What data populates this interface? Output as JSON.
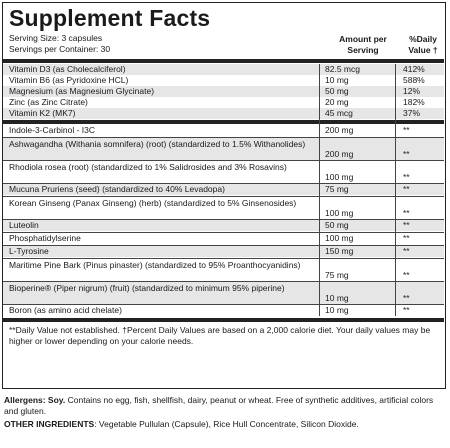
{
  "title": "Supplement Facts",
  "serving_size": "Serving Size: 3 capsules",
  "servings_per_container": "Servings per Container: 30",
  "header": {
    "amount": "Amount per Serving",
    "daily_value": "%Daily Value †"
  },
  "vitamins": [
    {
      "name": "Vitamin D3 (as Cholecalciferol)",
      "amount": "82.5 mcg",
      "dv": "412%"
    },
    {
      "name": "Vitamin B6 (as Pyridoxine HCL)",
      "amount": "10 mg",
      "dv": "588%"
    },
    {
      "name": "Magnesium (as Magnesium Glycinate)",
      "amount": "50 mg",
      "dv": "12%"
    },
    {
      "name": "Zinc (as Zinc Citrate)",
      "amount": "20 mg",
      "dv": "182%"
    },
    {
      "name": "Vitamin K2 (MK7)",
      "amount": "45 mcg",
      "dv": "37%"
    }
  ],
  "ingredients": [
    {
      "name": "Indole-3-Carbinol - I3C",
      "amount": "200 mg",
      "dv": "**"
    },
    {
      "name": "Ashwagandha (Withania somnifera) (root) (standardized to 1.5% Withanolides)",
      "amount": "200 mg",
      "dv": "**"
    },
    {
      "name": "Rhodiola rosea (root) (standardized to 1% Salidrosides and 3% Rosavins)",
      "amount": "100 mg",
      "dv": "**"
    },
    {
      "name": "Mucuna Pruriens (seed) (standardized to 40% Levadopa)",
      "amount": "75 mg",
      "dv": "**"
    },
    {
      "name": "Korean Ginseng (Panax Ginseng) (herb) (standardized to 5% Ginsenosides)",
      "amount": "100 mg",
      "dv": "**"
    },
    {
      "name": "Luteolin",
      "amount": "50 mg",
      "dv": "**"
    },
    {
      "name": "Phosphatidylserine",
      "amount": "100 mg",
      "dv": "**"
    },
    {
      "name": "L-Tyrosine",
      "amount": "150 mg",
      "dv": "**"
    },
    {
      "name": "Maritime Pine Bark (Pinus pinaster) (standardized to 95% Proanthocyanidins)",
      "amount": "75 mg",
      "dv": "**"
    },
    {
      "name": "Bioperine® (Piper nigrum) (fruit) (standardized to minimum 95% piperine)",
      "amount": "10 mg",
      "dv": "**"
    },
    {
      "name": "Boron (as amino acid chelate)",
      "amount": "10 mg",
      "dv": "**"
    }
  ],
  "footnote": "**Daily Value not established. †Percent Daily Values are based on a 2,000 calorie diet. Your daily values may be higher or lower depending on your calorie needs.",
  "allergens_label": "Allergens: Soy.",
  "allergens_text": "Contains no egg, fish, shellfish, dairy, peanut or wheat. Free of synthetic additives, artificial colors and gluten.",
  "other_label": "OTHER INGREDIENTS",
  "other_text": ": Vegetable Pullulan (Capsule), Rice Hull Concentrate, Silicon Dioxide."
}
